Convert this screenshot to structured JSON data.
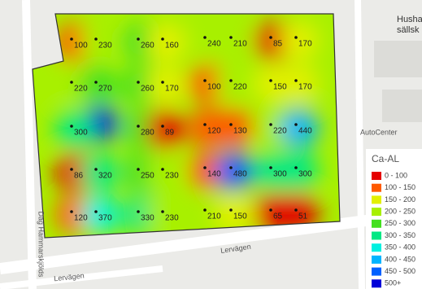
{
  "map": {
    "points": [
      "100",
      "230",
      "260",
      "160",
      "240",
      "210",
      "85",
      "170",
      "220",
      "270",
      "260",
      "170",
      "100",
      "220",
      "150",
      "170",
      "300",
      "280",
      "89",
      "120",
      "130",
      "220",
      "440",
      "86",
      "320",
      "250",
      "230",
      "140",
      "480",
      "300",
      "300",
      "120",
      "370",
      "330",
      "230",
      "210",
      "150",
      "65",
      "51"
    ],
    "legend": {
      "title": "Ca-AL",
      "items": [
        {
          "label": "0 - 100",
          "color": "#e50000"
        },
        {
          "label": "100 - 150",
          "color": "#ff5a00"
        },
        {
          "label": "150 - 200",
          "color": "#e2f000"
        },
        {
          "label": "200 - 250",
          "color": "#a8f000"
        },
        {
          "label": "250 - 300",
          "color": "#44e020"
        },
        {
          "label": "300 - 350",
          "color": "#00e884"
        },
        {
          "label": "350 - 400",
          "color": "#00f0e0"
        },
        {
          "label": "400 - 450",
          "color": "#00b4ff"
        },
        {
          "label": "450 - 500",
          "color": "#0060ff"
        },
        {
          "label": "500+",
          "color": "#0000d8"
        }
      ]
    },
    "streets": [
      "Lervägen",
      "Lervägen",
      "Dag Hammarskjölds"
    ],
    "places": [
      "AutoCenter",
      "Husha",
      "sällsk"
    ]
  }
}
